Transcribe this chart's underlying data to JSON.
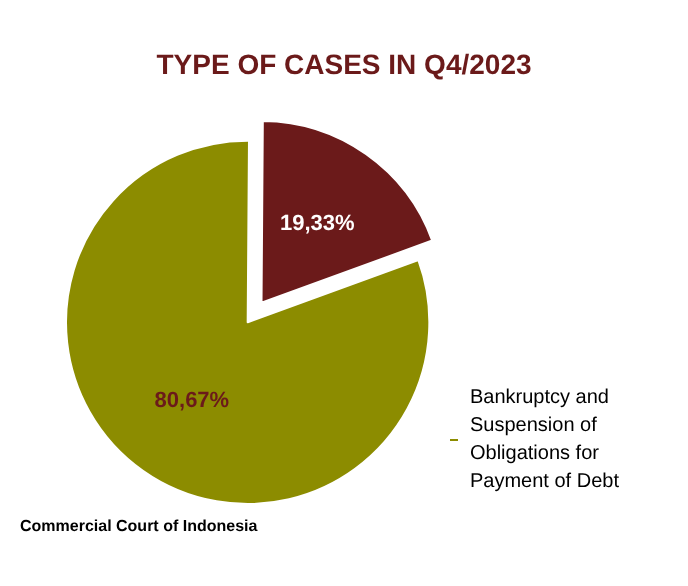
{
  "chart_data": {
    "type": "pie",
    "title": "TYPE OF CASES IN Q4/2023",
    "categories": [
      "Bankruptcy and Suspension of Obligations for Payment of Debt",
      null
    ],
    "values": [
      80.67,
      19.33
    ],
    "value_labels": [
      "80,67%",
      "19,33%"
    ],
    "colors": [
      "#8c8c00",
      "#6b1a1a"
    ],
    "legend": "bottom right",
    "annotations": [
      "Commercial Court of Indonesia"
    ]
  }
}
